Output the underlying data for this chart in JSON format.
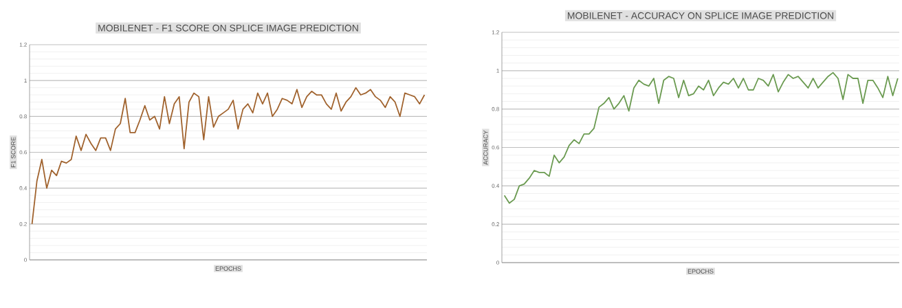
{
  "chart_data": [
    {
      "type": "line",
      "title": "MOBILENET - F1 SCORE ON SPLICE IMAGE PREDICTION",
      "xlabel": "EPOCHS",
      "ylabel": "F1 SCORE",
      "color": "#a0622d",
      "grid": "y",
      "marker": "none",
      "categories": [
        null,
        null,
        null,
        null,
        null,
        null,
        null,
        null,
        null,
        null,
        null,
        null,
        null,
        null,
        null,
        null,
        null,
        null,
        null,
        null,
        null,
        null,
        null,
        null,
        null,
        null,
        null,
        null,
        null,
        null,
        null,
        null,
        null,
        null,
        null,
        null,
        null,
        null,
        null,
        null,
        null,
        null,
        null,
        null,
        null,
        null,
        null,
        null,
        null,
        null,
        null,
        null,
        null,
        null,
        null,
        null,
        null,
        null,
        null,
        null,
        null,
        null,
        null,
        null,
        null,
        null,
        null,
        null,
        null,
        null,
        null,
        null,
        null,
        null,
        null,
        null,
        null,
        null,
        null,
        null,
        null
      ],
      "values": [
        0.2,
        0.44,
        0.56,
        0.4,
        0.5,
        0.47,
        0.55,
        0.54,
        0.56,
        0.69,
        0.61,
        0.7,
        0.65,
        0.61,
        0.68,
        0.68,
        0.61,
        0.73,
        0.76,
        0.9,
        0.71,
        0.71,
        0.78,
        0.86,
        0.78,
        0.8,
        0.73,
        0.91,
        0.76,
        0.87,
        0.91,
        0.62,
        0.88,
        0.93,
        0.91,
        0.67,
        0.91,
        0.74,
        0.8,
        0.82,
        0.84,
        0.89,
        0.73,
        0.84,
        0.87,
        0.82,
        0.93,
        0.87,
        0.93,
        0.8,
        0.84,
        0.9,
        0.89,
        0.87,
        0.95,
        0.85,
        0.91,
        0.94,
        0.92,
        0.92,
        0.87,
        0.84,
        0.93,
        0.83,
        0.88,
        0.91,
        0.96,
        0.92,
        0.93,
        0.95,
        0.91,
        0.89,
        0.85,
        0.91,
        0.88,
        0.8,
        0.93,
        0.92,
        0.91,
        0.87,
        0.92
      ],
      "ylim": [
        0,
        1.2
      ],
      "yticks": [
        0,
        0.2,
        0.4,
        0.6,
        0.8,
        1,
        1.2
      ]
    },
    {
      "type": "line",
      "title": "MOBILENET - ACCURACY ON SPLICE IMAGE PREDICTION",
      "xlabel": "EPOCHS",
      "ylabel": "ACCURACY",
      "color": "#6a9a50",
      "grid": "y",
      "marker": "none",
      "categories": [
        null,
        null,
        null,
        null,
        null,
        null,
        null,
        null,
        null,
        null,
        null,
        null,
        null,
        null,
        null,
        null,
        null,
        null,
        null,
        null,
        null,
        null,
        null,
        null,
        null,
        null,
        null,
        null,
        null,
        null,
        null,
        null,
        null,
        null,
        null,
        null,
        null,
        null,
        null,
        null,
        null,
        null,
        null,
        null,
        null,
        null,
        null,
        null,
        null,
        null,
        null,
        null,
        null,
        null,
        null,
        null,
        null,
        null,
        null,
        null,
        null,
        null,
        null,
        null,
        null,
        null,
        null,
        null,
        null,
        null,
        null,
        null,
        null,
        null,
        null,
        null,
        null,
        null,
        null,
        null
      ],
      "values": [
        0.35,
        0.31,
        0.33,
        0.4,
        0.41,
        0.44,
        0.48,
        0.47,
        0.47,
        0.45,
        0.56,
        0.52,
        0.55,
        0.61,
        0.64,
        0.62,
        0.67,
        0.67,
        0.7,
        0.81,
        0.83,
        0.86,
        0.8,
        0.83,
        0.87,
        0.79,
        0.91,
        0.95,
        0.93,
        0.92,
        0.96,
        0.83,
        0.95,
        0.97,
        0.96,
        0.86,
        0.95,
        0.87,
        0.88,
        0.92,
        0.9,
        0.95,
        0.87,
        0.91,
        0.94,
        0.93,
        0.96,
        0.91,
        0.96,
        0.9,
        0.9,
        0.96,
        0.95,
        0.92,
        0.98,
        0.89,
        0.94,
        0.98,
        0.96,
        0.97,
        0.94,
        0.91,
        0.96,
        0.91,
        0.94,
        0.97,
        0.99,
        0.96,
        0.85,
        0.98,
        0.96,
        0.96,
        0.83,
        0.95,
        0.95,
        0.91,
        0.86,
        0.97,
        0.87,
        0.96
      ],
      "ylim": [
        0,
        1.2
      ],
      "yticks": [
        0,
        0.2,
        0.4,
        0.6,
        0.8,
        1,
        1.2
      ]
    }
  ]
}
